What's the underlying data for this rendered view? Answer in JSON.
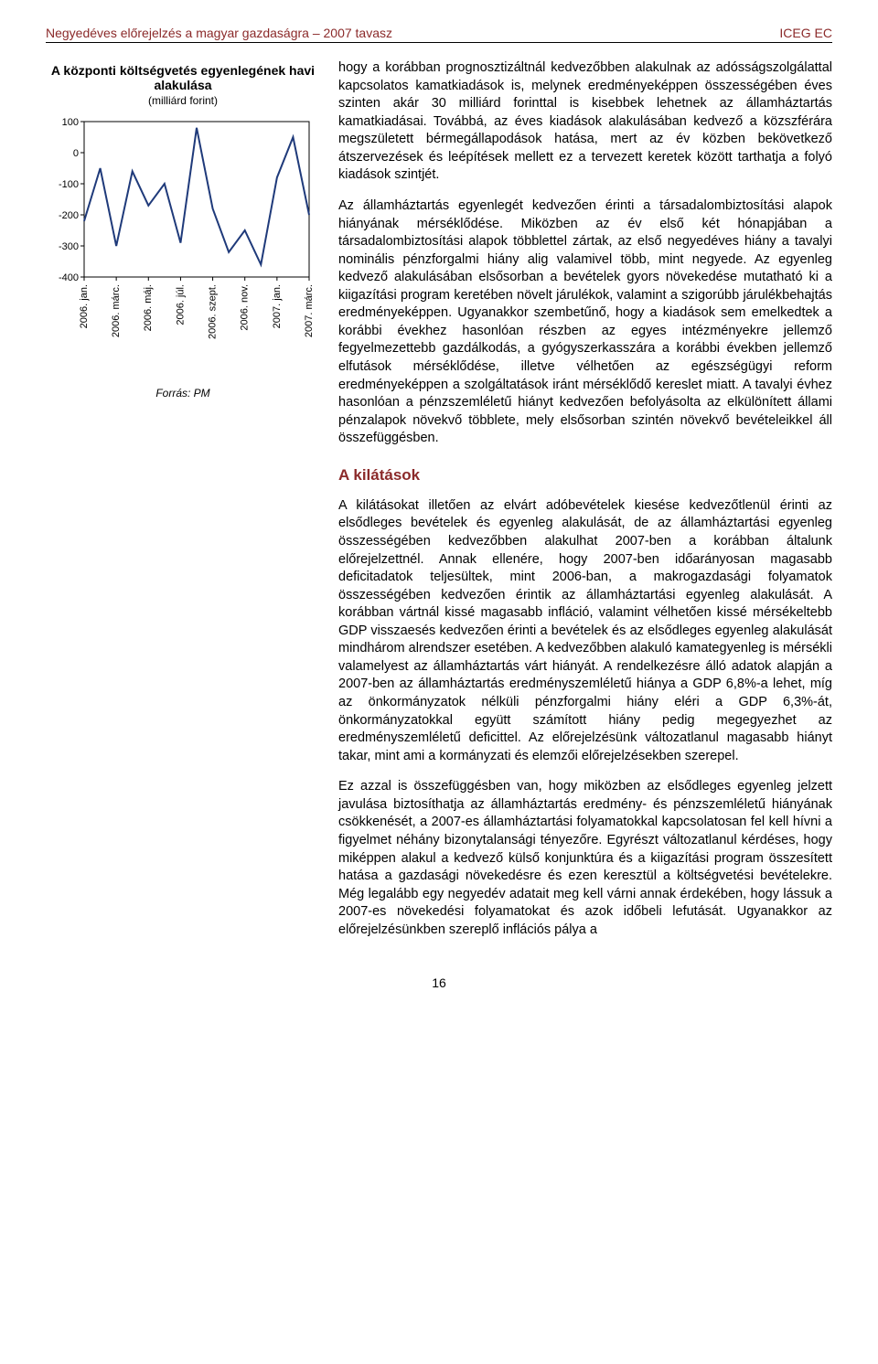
{
  "header": {
    "left": "Negyedéves előrejelzés a magyar gazdaságra – 2007 tavasz",
    "right": "ICEG EC"
  },
  "chart": {
    "type": "line",
    "title": "A központi költségvetés egyenlegének havi alakulása",
    "subtitle": "(milliárd forint)",
    "source": "Forrás: PM",
    "x_labels": [
      "2006. jan.",
      "2006. márc.",
      "2006. máj.",
      "2006. júl.",
      "2006. szept.",
      "2006. nov.",
      "2007. jan.",
      "2007. márc."
    ],
    "values": [
      -220,
      -50,
      -300,
      -60,
      -170,
      -100,
      -290,
      80,
      -180,
      -320,
      -250,
      -360,
      -80,
      50,
      -200
    ],
    "ylim": [
      -400,
      100
    ],
    "ytick_step": 100,
    "line_color": "#1f3a7a",
    "line_width": 2,
    "axis_color": "#000000",
    "plot_bg": "#ffffff",
    "label_fontsize": 11
  },
  "body": {
    "p1": "hogy a korábban prognosztizáltnál kedvezőbben alakulnak az adósságszolgálattal kapcsolatos kamatkiadások is, melynek eredményeképpen összességében éves szinten akár 30 milliárd forinttal is kisebbek lehetnek az államháztartás kamatkiadásai. Továbbá, az éves kiadások alakulásában kedvező a közszférára megszületett bérmegállapodások hatása, mert az év közben bekövetkező átszervezések és leépítések mellett ez a tervezett keretek között tarthatja a folyó kiadások szintjét.",
    "p2": "Az államháztartás egyenlegét kedvezően érinti a társadalombiztosítási alapok hiányának mérséklődése. Miközben az év első két hónapjában a társadalombiztosítási alapok többlettel zártak, az első negyedéves hiány a tavalyi nominális pénzforgalmi hiány alig valamivel több, mint negyede. Az egyenleg kedvező alakulásában elsősorban a bevételek gyors növekedése mutatható ki a kiigazítási program keretében növelt járulékok, valamint a szigorúbb járulékbehajtás eredményeképpen. Ugyanakkor szembetűnő, hogy a kiadások sem emelkedtek a korábbi évekhez hasonlóan részben az egyes intézményekre jellemző fegyelmezettebb gazdálkodás, a gyógyszerkasszára a korábbi években jellemző elfutások mérséklődése, illetve vélhetően az egészségügyi reform eredményeképpen a szolgáltatások iránt mérséklődő kereslet miatt. A tavalyi évhez hasonlóan a pénzszemléletű hiányt kedvezően befolyásolta az elkülönített állami pénzalapok növekvő többlete, mely elsősorban szintén növekvő bevételeikkel áll összefüggésben.",
    "section_title": "A kilátások",
    "p3": "A kilátásokat illetően az elvárt adóbevételek kiesése kedvezőtlenül érinti az elsődleges bevételek és egyenleg alakulását, de az államháztartási egyenleg összességében kedvezőbben alakulhat 2007-ben a korábban általunk előrejelzettnél. Annak ellenére, hogy 2007-ben időarányosan magasabb deficitadatok teljesültek, mint 2006-ban, a makrogazdasági folyamatok összességében kedvezően érintik az államháztartási egyenleg alakulását. A korábban vártnál kissé magasabb infláció, valamint vélhetően kissé mérsékeltebb GDP visszaesés kedvezően érinti a bevételek és az elsődleges egyenleg alakulását mindhárom alrendszer esetében. A kedvezőbben alakuló kamategyenleg is mérsékli valamelyest az államháztartás várt hiányát. A rendelkezésre álló adatok alapján a 2007-ben az államháztartás eredményszemléletű hiánya a GDP 6,8%-a lehet, míg az önkormányzatok nélküli pénzforgalmi hiány eléri a GDP 6,3%-át, önkormányzatokkal együtt számított hiány pedig megegyezhet az eredményszemléletű deficittel. Az előrejelzésünk változatlanul magasabb hiányt takar, mint ami a kormányzati és elemzői előrejelzésekben szerepel.",
    "p4": "Ez azzal is összefüggésben van, hogy miközben az elsődleges egyenleg jelzett javulása biztosíthatja az államháztartás eredmény- és pénzszemléletű hiányának csökkenését, a 2007-es államháztartási folyamatokkal kapcsolatosan fel kell hívni a figyelmet néhány bizonytalansági tényezőre. Egyrészt változatlanul kérdéses, hogy miképpen alakul a kedvező külső konjunktúra és a kiigazítási program összesített hatása a gazdasági növekedésre és ezen keresztül a költségvetési bevételekre. Még legalább egy negyedév adatait meg kell várni annak érdekében, hogy lássuk a 2007-es növekedési folyamatokat és azok időbeli lefutását. Ugyanakkor az előrejelzésünkben szereplő inflációs pálya a"
  },
  "pagenum": "16"
}
